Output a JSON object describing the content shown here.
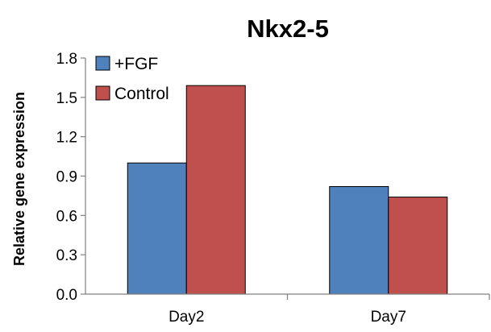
{
  "chart_data": {
    "type": "bar",
    "title": "Nkx2-5",
    "xlabel": "",
    "ylabel": "Relative gene expression",
    "categories": [
      "Day2",
      "Day7"
    ],
    "series": [
      {
        "name": "+FGF",
        "values": [
          1.0,
          0.82
        ],
        "color": "#4F81BD"
      },
      {
        "name": "Control",
        "values": [
          1.59,
          0.74
        ],
        "color": "#C0504D"
      }
    ],
    "ylim": [
      0,
      1.8
    ],
    "yticks": [
      0.0,
      0.3,
      0.6,
      0.9,
      1.2,
      1.5,
      1.8
    ],
    "ytick_labels": [
      "0.0",
      "0.3",
      "0.6",
      "0.9",
      "1.2",
      "1.5",
      "1.8"
    ],
    "grid": false,
    "legend_position": "top-left"
  }
}
